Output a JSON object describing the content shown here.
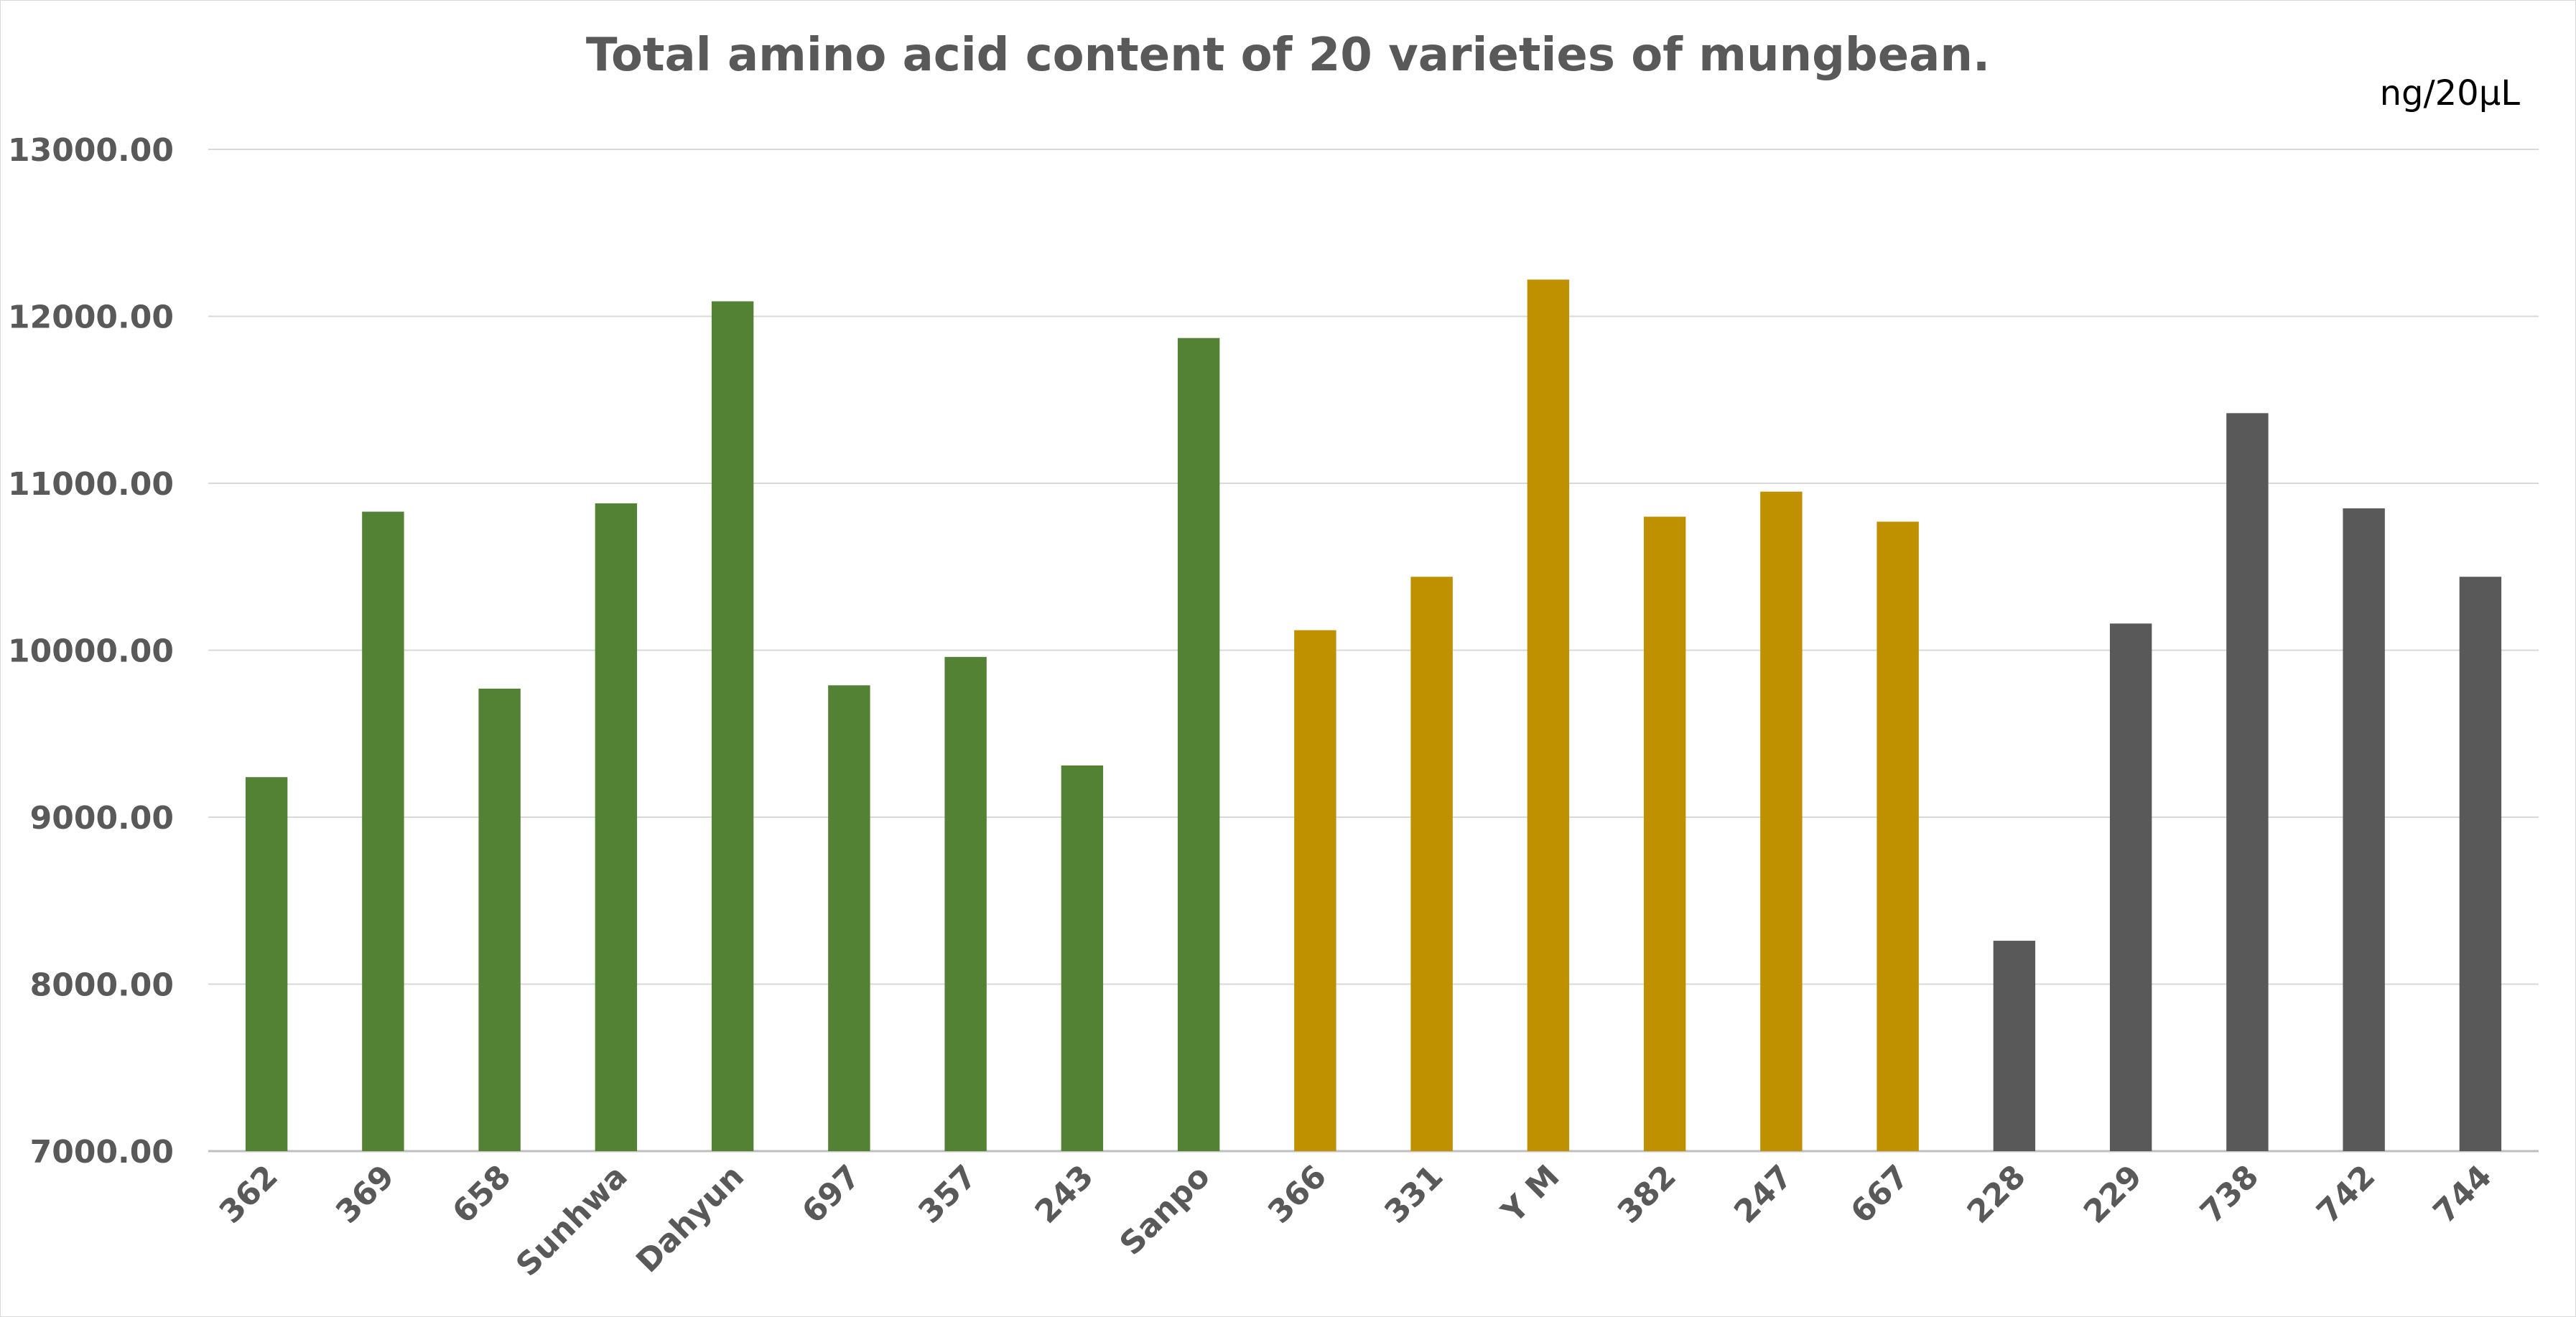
{
  "chart_data": {
    "type": "bar",
    "title": "Total amino acid content of 20 varieties of mungbean.",
    "unit_label": "ng/20μL",
    "xlabel": "",
    "ylabel": "",
    "ylim": [
      7000,
      13000
    ],
    "y_ticks": [
      "7000.00",
      "8000.00",
      "9000.00",
      "10000.00",
      "11000.00",
      "12000.00",
      "13000.00"
    ],
    "grid": true,
    "legend": "none",
    "categories": [
      "362",
      "369",
      "658",
      "Sunhwa",
      "Dahyun",
      "697",
      "357",
      "243",
      "Sanpo",
      "366",
      "331",
      "Y M",
      "382",
      "247",
      "667",
      "228",
      "229",
      "738",
      "742",
      "744"
    ],
    "values": [
      9240,
      10830,
      9770,
      10880,
      12090,
      9790,
      9960,
      9310,
      11870,
      10120,
      10440,
      12220,
      10800,
      10950,
      10770,
      8260,
      10160,
      11420,
      10850,
      10440
    ],
    "bar_colors": [
      "#548235",
      "#548235",
      "#548235",
      "#548235",
      "#548235",
      "#548235",
      "#548235",
      "#548235",
      "#548235",
      "#BF9000",
      "#BF9000",
      "#BF9000",
      "#BF9000",
      "#BF9000",
      "#BF9000",
      "#595959",
      "#595959",
      "#595959",
      "#595959",
      "#595959"
    ]
  }
}
